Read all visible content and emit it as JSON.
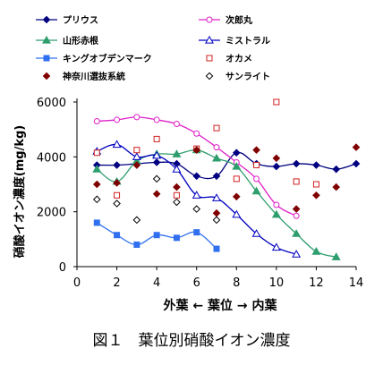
{
  "chart_data": {
    "type": "line",
    "ylabel": "硝酸イオン濃度(mg/kg)",
    "xlabel": "外葉 ← 葉位 → 内葉",
    "caption": "図１　葉位別硝酸イオン濃度",
    "xlim": [
      0,
      14
    ],
    "ylim": [
      0,
      6000
    ],
    "xticks": [
      0,
      2,
      4,
      6,
      8,
      10,
      12,
      14
    ],
    "yticks": [
      0,
      2000,
      4000,
      6000
    ],
    "grid": false,
    "legend_position": "top",
    "series": [
      {
        "name": "プリウス",
        "color": "#000080",
        "marker": "diamond-filled",
        "line": true,
        "x": [
          1,
          2,
          3,
          4,
          5,
          6,
          7,
          8,
          9,
          10,
          11,
          12,
          13,
          14
        ],
        "y": [
          3700,
          3700,
          3750,
          3800,
          3750,
          3300,
          3300,
          4150,
          3750,
          3650,
          3750,
          3700,
          3550,
          3750
        ]
      },
      {
        "name": "次郎丸",
        "color": "#e020c8",
        "marker": "circle-open",
        "line": true,
        "x": [
          1,
          2,
          3,
          4,
          5,
          6,
          7,
          8,
          9,
          10,
          11
        ],
        "y": [
          5300,
          5350,
          5450,
          5350,
          5200,
          4850,
          4350,
          3800,
          3200,
          2250,
          1850
        ]
      },
      {
        "name": "山形赤根",
        "color": "#2e9e6e",
        "marker": "triangle-filled",
        "line": true,
        "x": [
          1,
          2,
          3,
          4,
          5,
          6,
          7,
          8,
          9,
          10,
          11,
          12,
          13
        ],
        "y": [
          3550,
          3100,
          3850,
          4100,
          4100,
          4250,
          3950,
          3650,
          2750,
          1900,
          1200,
          550,
          350
        ]
      },
      {
        "name": "ミストラル",
        "color": "#0000c0",
        "marker": "triangle-open",
        "line": true,
        "x": [
          1,
          2,
          3,
          4,
          5,
          6,
          7,
          8,
          9,
          10,
          11
        ],
        "y": [
          4200,
          4450,
          4000,
          4050,
          3550,
          2600,
          2500,
          1900,
          1200,
          700,
          450
        ]
      },
      {
        "name": "キングオブデンマーク",
        "color": "#3070f0",
        "marker": "square-filled",
        "line": true,
        "x": [
          1,
          2,
          3,
          4,
          5,
          6,
          7
        ],
        "y": [
          1600,
          1150,
          800,
          1150,
          1050,
          1250,
          650
        ]
      },
      {
        "name": "オカメ",
        "color": "#d02020",
        "marker": "square-open",
        "line": false,
        "x": [
          1,
          2,
          3,
          4,
          5,
          6,
          7,
          8,
          9,
          10,
          11,
          12
        ],
        "y": [
          4150,
          2600,
          4250,
          4650,
          2600,
          4300,
          5050,
          3200,
          3700,
          6000,
          3100,
          3000
        ]
      },
      {
        "name": "神奈川選抜系統",
        "color": "#800000",
        "marker": "diamond-filled",
        "line": false,
        "x": [
          1,
          2,
          3,
          4,
          5,
          6,
          7,
          8,
          9,
          10,
          11,
          12,
          13,
          14
        ],
        "y": [
          3000,
          3050,
          3700,
          2650,
          2900,
          4250,
          1950,
          2550,
          4250,
          3950,
          2100,
          2600,
          2900,
          4350
        ]
      },
      {
        "name": "サンライト",
        "color": "#000000",
        "marker": "diamond-open",
        "line": false,
        "x": [
          1,
          2,
          3,
          4,
          5,
          6,
          7
        ],
        "y": [
          2450,
          2300,
          1700,
          3200,
          2350,
          2100,
          1700
        ]
      }
    ]
  }
}
